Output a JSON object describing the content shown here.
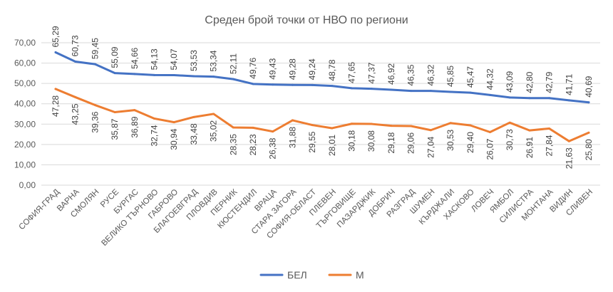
{
  "chart_data": {
    "type": "line",
    "title": "Среден брой точки от НВО по региони",
    "xlabel": "",
    "ylabel": "",
    "ylim": [
      0,
      70
    ],
    "yticks": [
      "0,00",
      "10,00",
      "20,00",
      "30,00",
      "40,00",
      "50,00",
      "60,00",
      "70,00"
    ],
    "grid": true,
    "legend_position": "bottom",
    "categories": [
      "СОФИЯ-ГРАД",
      "ВАРНА",
      "СМОЛЯН",
      "РУСЕ",
      "БУРГАС",
      "ВЕЛИКО ТЪРНОВО",
      "ГАБРОВО",
      "БЛАГОЕВГРАД",
      "ПЛОВДИВ",
      "ПЕРНИК",
      "КЮСТЕНДИЛ",
      "ВРАЦА",
      "СТАРА ЗАГОРА",
      "СОФИЯ-ОБЛАСТ",
      "ПЛЕВЕН",
      "ТЪРГОВИЩЕ",
      "ПАЗАРДЖИК",
      "ДОБРИЧ",
      "РАЗГРАД",
      "ШУМЕН",
      "КЪРДЖАЛИ",
      "ХАСКОВО",
      "ЛОВЕЧ",
      "ЯМБОЛ",
      "СИЛИСТРА",
      "МОНТАНА",
      "ВИДИН",
      "СЛИВЕН"
    ],
    "series": [
      {
        "name": "БЕЛ",
        "color": "#4472c4",
        "values": [
          65.29,
          60.73,
          59.45,
          55.09,
          54.66,
          54.13,
          54.07,
          53.53,
          53.34,
          52.11,
          49.76,
          49.43,
          49.28,
          49.24,
          48.78,
          47.65,
          47.37,
          46.92,
          46.35,
          46.32,
          45.85,
          45.47,
          44.32,
          43.09,
          42.8,
          42.79,
          41.71,
          40.69
        ],
        "labels": [
          "65,29",
          "60,73",
          "59,45",
          "55,09",
          "54,66",
          "54,13",
          "54,07",
          "53,53",
          "53,34",
          "52,11",
          "49,76",
          "49,43",
          "49,28",
          "49,24",
          "48,78",
          "47,65",
          "47,37",
          "46,92",
          "46,35",
          "46,32",
          "45,85",
          "45,47",
          "44,32",
          "43,09",
          "42,80",
          "42,79",
          "41,71",
          "40,69"
        ]
      },
      {
        "name": "М",
        "color": "#ed7d31",
        "values": [
          47.28,
          43.25,
          39.36,
          35.87,
          36.89,
          32.74,
          30.94,
          33.48,
          35.02,
          28.35,
          28.23,
          26.38,
          31.88,
          29.55,
          28.01,
          30.18,
          30.08,
          29.18,
          29.06,
          27.04,
          30.53,
          29.4,
          26.07,
          30.73,
          26.91,
          27.84,
          21.63,
          25.8
        ],
        "labels": [
          "47,28",
          "43,25",
          "39,36",
          "35,87",
          "36,89",
          "32,74",
          "30,94",
          "33,48",
          "35,02",
          "28,35",
          "28,23",
          "26,38",
          "31,88",
          "29,55",
          "28,01",
          "30,18",
          "30,08",
          "29,18",
          "29,06",
          "27,04",
          "30,53",
          "29,40",
          "26,07",
          "30,73",
          "26,91",
          "27,84",
          "21,63",
          "25,80"
        ]
      }
    ]
  }
}
